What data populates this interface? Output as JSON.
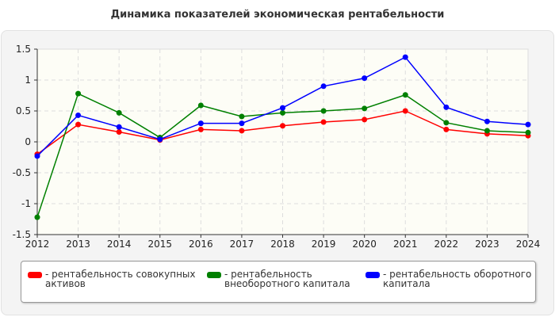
{
  "chart_data": {
    "type": "line",
    "title": "Динамика показателей экономическая рентабельности",
    "x": [
      2012,
      2013,
      2014,
      2015,
      2016,
      2017,
      2018,
      2019,
      2020,
      2021,
      2022,
      2023,
      2024
    ],
    "xlabel": "",
    "ylabel": "",
    "ylim": [
      -1.5,
      1.5
    ],
    "yticks": [
      "1.5",
      "1",
      "0.5",
      "0",
      "-0.5",
      "-1",
      "-1.5"
    ],
    "grid": true,
    "legend_position": "bottom",
    "series": [
      {
        "name": "- рентабельность совокупных активов",
        "color": "#ff0000",
        "values": [
          -0.2,
          0.28,
          0.16,
          0.03,
          0.2,
          0.18,
          0.26,
          0.32,
          0.36,
          0.5,
          0.2,
          0.13,
          0.1
        ]
      },
      {
        "name": "- рентабельность внеоборотного капитала",
        "color": "#008000",
        "values": [
          -1.22,
          0.78,
          0.47,
          0.07,
          0.59,
          0.41,
          0.47,
          0.5,
          0.54,
          0.76,
          0.31,
          0.18,
          0.15
        ]
      },
      {
        "name": "- рентабельность оборотного капитала",
        "color": "#0000ff",
        "values": [
          -0.23,
          0.43,
          0.24,
          0.04,
          0.3,
          0.3,
          0.55,
          0.9,
          1.03,
          1.37,
          0.56,
          0.33,
          0.28
        ]
      }
    ]
  }
}
